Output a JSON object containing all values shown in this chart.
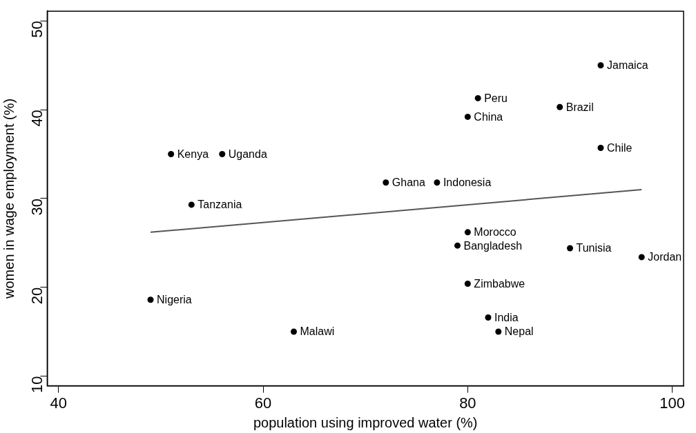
{
  "chart_data": {
    "type": "scatter",
    "xlabel": "population using improved water (%)",
    "ylabel": "women in wage employment (%)",
    "xlim": [
      38.9,
      101.1
    ],
    "ylim": [
      8.9,
      51.1
    ],
    "xticks": [
      40,
      60,
      80,
      100
    ],
    "yticks": [
      10,
      20,
      30,
      40,
      50
    ],
    "grid": false,
    "legend": false,
    "marker": "circle",
    "series": [
      {
        "color": "#000000",
        "x": [
          51,
          56,
          53,
          49,
          63,
          93,
          81,
          89,
          80,
          93,
          72,
          77,
          80,
          79,
          90,
          97,
          80,
          82,
          83
        ],
        "values": [
          35.0,
          35.0,
          29.3,
          18.6,
          15.0,
          45.0,
          41.3,
          40.3,
          39.2,
          35.7,
          31.8,
          31.8,
          26.2,
          24.7,
          24.4,
          23.4,
          20.4,
          16.6,
          15.0
        ]
      },
      {
        "type": "line",
        "color": "#555555",
        "x": [
          49,
          97
        ],
        "values": [
          26.2,
          31.0
        ],
        "marker": "none"
      }
    ],
    "annotations": [
      {
        "text": "Kenya",
        "x": 51,
        "y": 35.0
      },
      {
        "text": "Uganda",
        "x": 56,
        "y": 35.0
      },
      {
        "text": "Tanzania",
        "x": 53,
        "y": 29.3
      },
      {
        "text": "Nigeria",
        "x": 49,
        "y": 18.6
      },
      {
        "text": "Malawi",
        "x": 63,
        "y": 15.0
      },
      {
        "text": "Jamaica",
        "x": 93,
        "y": 45.0
      },
      {
        "text": "Peru",
        "x": 81,
        "y": 41.3
      },
      {
        "text": "Brazil",
        "x": 89,
        "y": 40.3
      },
      {
        "text": "China",
        "x": 80,
        "y": 39.2
      },
      {
        "text": "Chile",
        "x": 93,
        "y": 35.7
      },
      {
        "text": "Ghana",
        "x": 72,
        "y": 31.8
      },
      {
        "text": "Indonesia",
        "x": 77,
        "y": 31.8
      },
      {
        "text": "Morocco",
        "x": 80,
        "y": 26.2
      },
      {
        "text": "Bangladesh",
        "x": 79,
        "y": 24.7
      },
      {
        "text": "Tunisia",
        "x": 90,
        "y": 24.4
      },
      {
        "text": "Jordan",
        "x": 97,
        "y": 23.4
      },
      {
        "text": "Zimbabwe",
        "x": 80,
        "y": 20.4
      },
      {
        "text": "India",
        "x": 82,
        "y": 16.6
      },
      {
        "text": "Nepal",
        "x": 83,
        "y": 15.0
      }
    ]
  }
}
